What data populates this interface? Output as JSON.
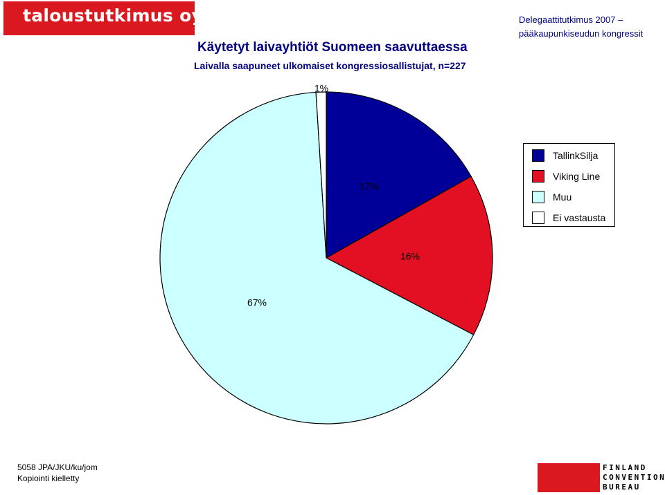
{
  "header": {
    "logo_text": "taloustutkimus oy",
    "title": "Käytetyt laivayhtiöt Suomeen saavuttaessa",
    "subtitle": "Laivalla saapuneet ulkomaiset kongressiosallistujat, n=227",
    "survey_line1": "Delegaattitutkimus 2007 –",
    "survey_line2": "pääkaupunkiseudun kongressit"
  },
  "chart_data": {
    "type": "pie",
    "categories": [
      "TallinkSilja",
      "Viking Line",
      "Muu",
      "Ei vastausta"
    ],
    "values": [
      17,
      16,
      67,
      1
    ],
    "labels": [
      "17%",
      "16%",
      "67%",
      "1%"
    ],
    "colors": [
      "#000099",
      "#e31023",
      "#ccffff",
      "#ffffff"
    ],
    "legend": "right"
  },
  "footer": {
    "code": "5058 JPA/JKU/ku/jom",
    "note": "Kopiointi kielletty",
    "brand_line1": "FINLAND",
    "brand_line2": "CONVENTION",
    "brand_line3": "BUREAU"
  }
}
